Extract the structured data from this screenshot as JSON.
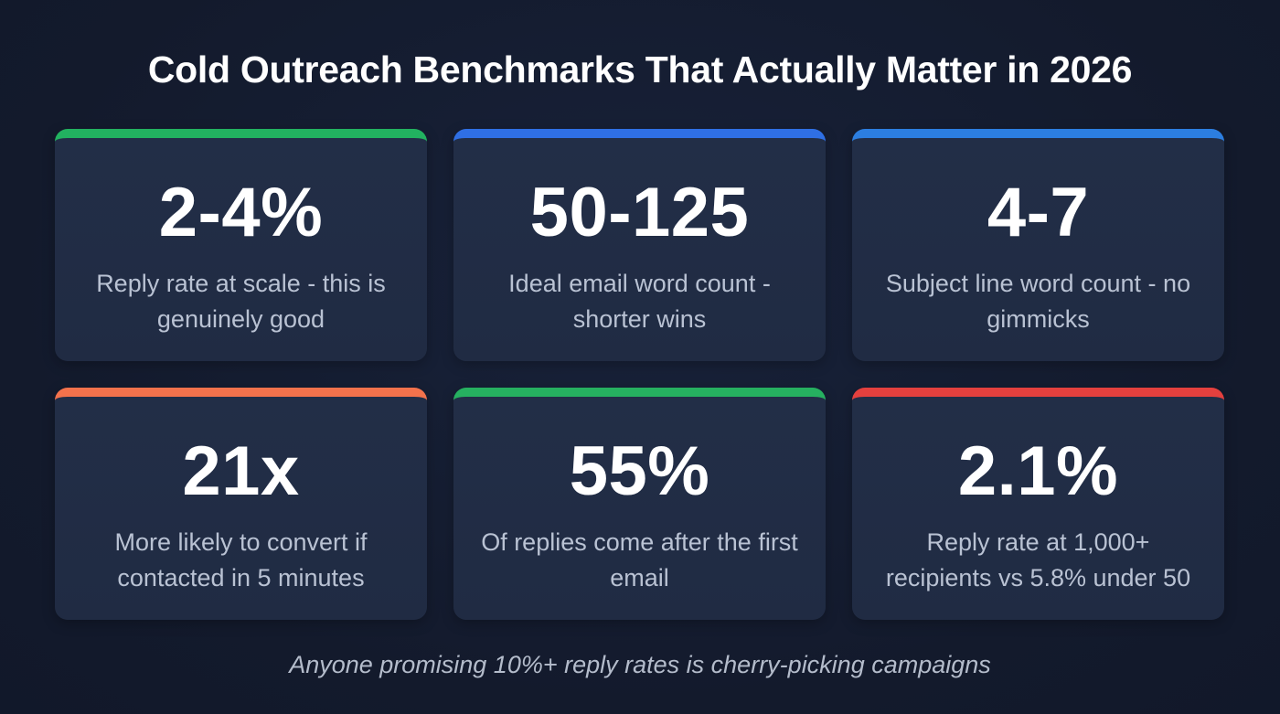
{
  "header": {
    "title": "Cold Outreach Benchmarks That Actually Matter in 2026"
  },
  "cards": [
    {
      "value": "2-4%",
      "description": "Reply rate at scale - this is genuinely good",
      "accent": "#22b260"
    },
    {
      "value": "50-125",
      "description": "Ideal email word count - shorter wins",
      "accent": "#2f6fe4"
    },
    {
      "value": "4-7",
      "description": "Subject line word count - no gimmicks",
      "accent": "#2c7ee0"
    },
    {
      "value": "21x",
      "description": "More likely to convert if contacted in 5 minutes",
      "accent": "#f3724c"
    },
    {
      "value": "55%",
      "description": "Of replies come after the first email",
      "accent": "#26b060"
    },
    {
      "value": "2.1%",
      "description": "Reply rate at 1,000+ recipients vs 5.8% under 50",
      "accent": "#e4403e"
    }
  ],
  "footer": {
    "note": "Anyone promising 10%+ reply rates is cherry-picking campaigns"
  }
}
